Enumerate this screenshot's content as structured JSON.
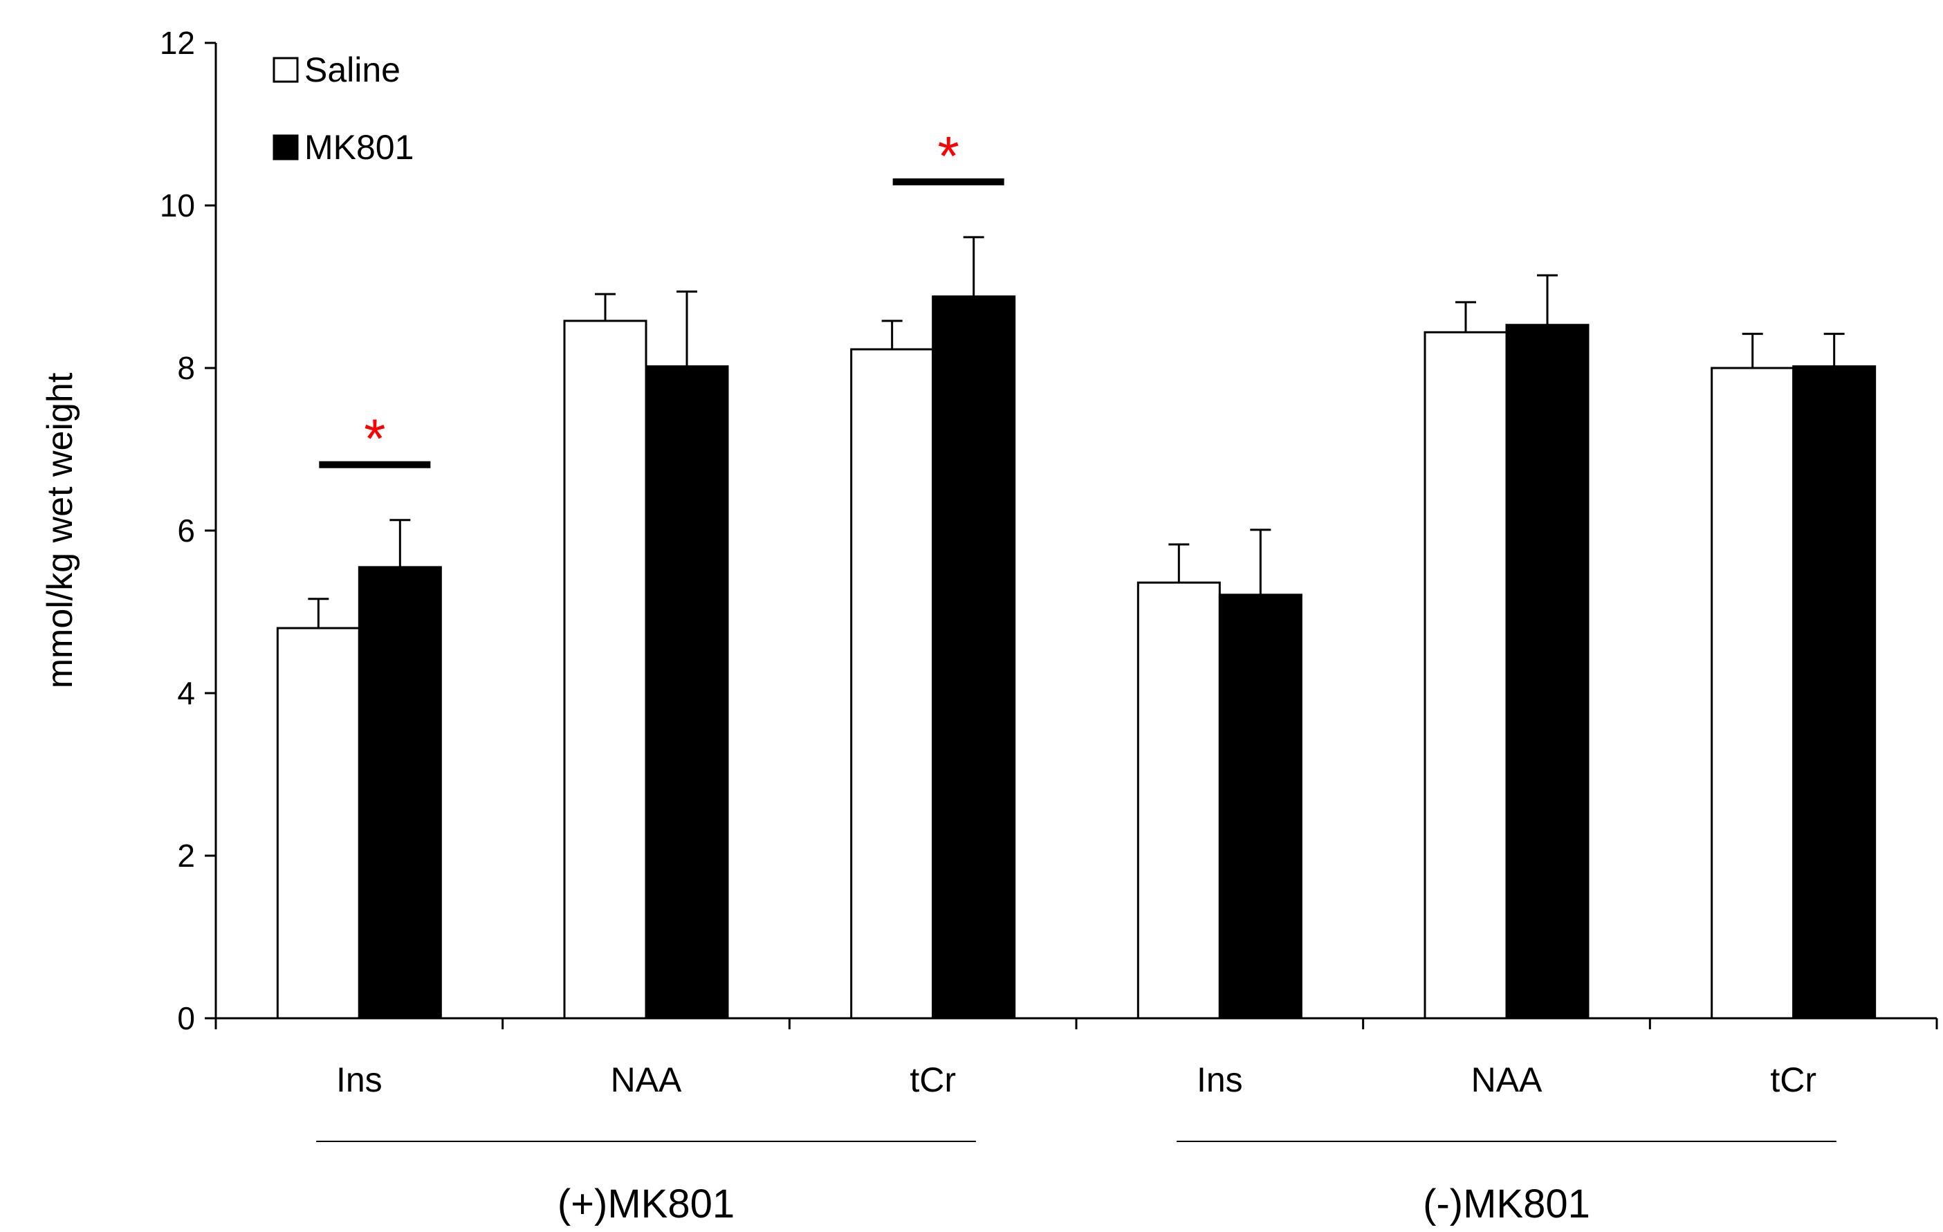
{
  "chart_data": {
    "type": "bar",
    "title": "",
    "xlabel": "",
    "ylabel": "mmol/kg wet weight",
    "ylim": [
      0,
      12
    ],
    "yticks": [
      0,
      2,
      4,
      6,
      8,
      10,
      12
    ],
    "grid": false,
    "legend_position": "top-left",
    "categories": [
      "Ins",
      "NAA",
      "tCr",
      "Ins",
      "NAA",
      "tCr"
    ],
    "groups": [
      {
        "label": "(+)MK801",
        "categories": [
          0,
          1,
          2
        ]
      },
      {
        "label": "(-)MK801",
        "categories": [
          3,
          4,
          5
        ]
      }
    ],
    "series": [
      {
        "name": "Saline",
        "fill": "#ffffff",
        "values": [
          4.8,
          8.58,
          8.23,
          5.36,
          8.44,
          8.0
        ],
        "errors": [
          0.36,
          0.33,
          0.35,
          0.47,
          0.37,
          0.42
        ]
      },
      {
        "name": "MK801",
        "fill": "#000000",
        "values": [
          5.55,
          8.02,
          8.88,
          5.21,
          8.53,
          8.02
        ],
        "errors": [
          0.58,
          0.92,
          0.73,
          0.8,
          0.61,
          0.4
        ]
      }
    ],
    "significance": [
      {
        "category": 0,
        "marker": "*",
        "color": "#ff0000"
      },
      {
        "category": 2,
        "marker": "*",
        "color": "#ff0000"
      }
    ]
  }
}
